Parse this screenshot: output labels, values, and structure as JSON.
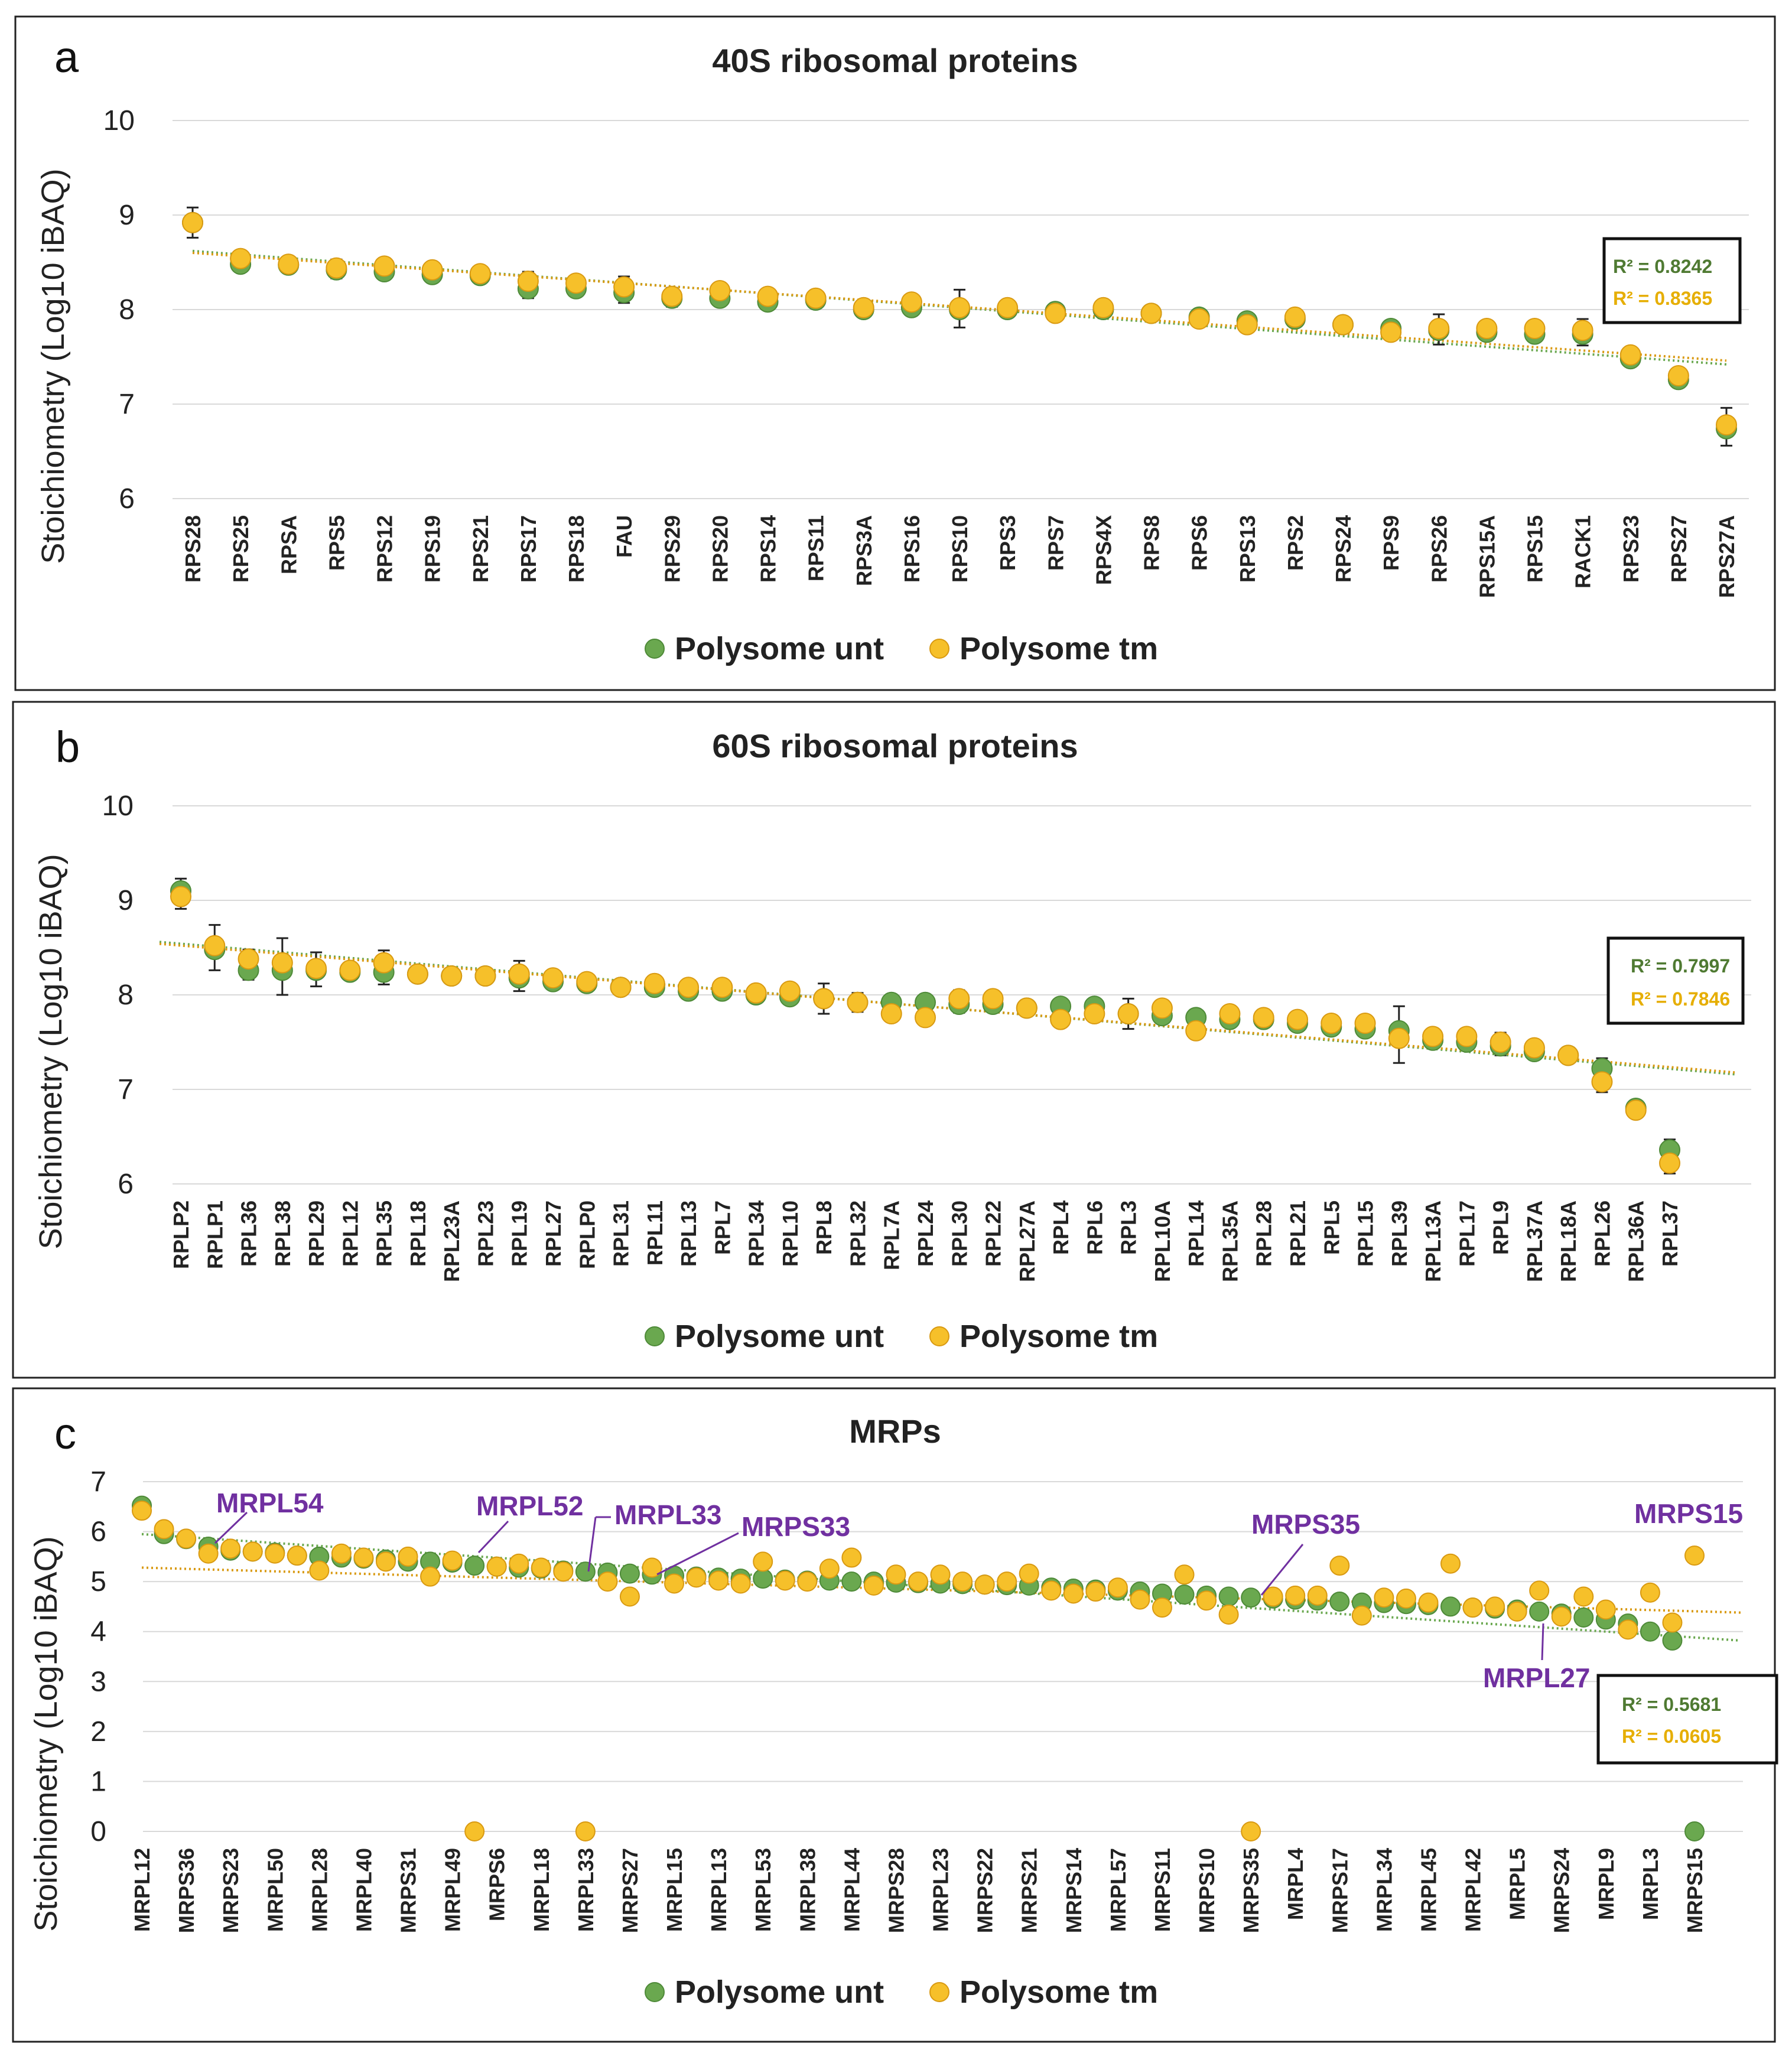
{
  "colors": {
    "unt": "#6aa84f",
    "unt_stroke": "#4e8a38",
    "tm": "#f6c02a",
    "tm_stroke": "#d99a12",
    "r2_unt": "#4f7a32",
    "r2_tm": "#e6ae00",
    "callout": "#7030a0"
  },
  "legend": {
    "unt": "Polysome unt",
    "tm": "Polysome tm"
  },
  "chart_data": [
    {
      "type": "scatter",
      "panel": "a",
      "title": "40S ribosomal proteins",
      "ylabel": "Stoichiometry (Log10 iBAQ)",
      "ylim": [
        6,
        10
      ],
      "yticks": [
        "6",
        "7",
        "8",
        "9",
        "10"
      ],
      "categories": [
        "RPS28",
        "RPS25",
        "RPSA",
        "RPS5",
        "RPS12",
        "RPS19",
        "RPS21",
        "RPS17",
        "RPS18",
        "FAU",
        "RPS29",
        "RPS20",
        "RPS14",
        "RPS11",
        "RPS3A",
        "RPS16",
        "RPS10",
        "RPS3",
        "RPS7",
        "RPS4X",
        "RPS8",
        "RPS6",
        "RPS13",
        "RPS2",
        "RPS24",
        "RPS9",
        "RPS26",
        "RPS15A",
        "RPS15",
        "RACK1",
        "RPS23",
        "RPS27",
        "RPS27A"
      ],
      "series": [
        {
          "name": "Polysome unt",
          "values": [
            8.92,
            8.48,
            8.47,
            8.42,
            8.4,
            8.37,
            8.36,
            8.22,
            8.22,
            8.18,
            8.12,
            8.12,
            8.08,
            8.1,
            8.0,
            8.02,
            8.0,
            8.0,
            7.98,
            8.0,
            7.96,
            7.92,
            7.88,
            7.9,
            7.84,
            7.8,
            7.78,
            7.76,
            7.74,
            7.74,
            7.48,
            7.26,
            6.74
          ]
        },
        {
          "name": "Polysome tm",
          "values": [
            8.92,
            8.54,
            8.48,
            8.44,
            8.46,
            8.42,
            8.38,
            8.3,
            8.28,
            8.24,
            8.14,
            8.2,
            8.14,
            8.12,
            8.02,
            8.08,
            8.02,
            8.02,
            7.96,
            8.02,
            7.96,
            7.9,
            7.84,
            7.92,
            7.84,
            7.76,
            7.8,
            7.8,
            7.8,
            7.78,
            7.52,
            7.3,
            6.78
          ]
        }
      ],
      "errors": [
        0.16,
        0.1,
        0.04,
        0.1,
        0.05,
        0.1,
        0.06,
        0.14,
        0.06,
        0.14,
        0.1,
        0.06,
        0.04,
        0.06,
        0.06,
        0.06,
        0.2,
        0.06,
        0.04,
        0.06,
        0.04,
        0.06,
        0.06,
        0.06,
        0.06,
        0.06,
        0.16,
        0.06,
        0.06,
        0.14,
        0.08,
        0.1,
        0.2
      ],
      "trendlines": {
        "unt": [
          8.62,
          7.42
        ],
        "tm": [
          8.6,
          7.46
        ]
      },
      "r_squared": {
        "unt": "R² = 0.8242",
        "tm": "R² = 0.8365"
      }
    },
    {
      "type": "scatter",
      "panel": "b",
      "title": "60S ribosomal proteins",
      "ylabel": "Stoichiometry (Log10 iBAQ)",
      "ylim": [
        6,
        10
      ],
      "yticks": [
        "6",
        "7",
        "8",
        "9",
        "10"
      ],
      "categories": [
        "RPLP2",
        "RPLP1",
        "RPL36",
        "RPL38",
        "RPL29",
        "RPL12",
        "RPL35",
        "RPL18",
        "RPL23A",
        "RPL23",
        "RPL19",
        "RPL27",
        "RPLP0",
        "RPL31",
        "RPL11",
        "RPL13",
        "RPL7",
        "RPL34",
        "RPL10",
        "RPL8",
        "RPL32",
        "RPL7A",
        "RPL24",
        "RPL30",
        "RPL22",
        "RPL27A",
        "RPL4",
        "RPL6",
        "RPL3",
        "RPL10A",
        "RPL14",
        "RPL35A",
        "RPL28",
        "RPL21",
        "RPL5",
        "RPL15",
        "RPL39",
        "RPL13A",
        "RPL17",
        "RPL9",
        "RPL37A",
        "RPL18A",
        "RPL26",
        "RPL36A",
        "RPL37"
      ],
      "series": [
        {
          "name": "Polysome unt",
          "values": [
            9.1,
            8.48,
            8.26,
            8.26,
            8.26,
            8.24,
            8.24,
            8.22,
            8.2,
            8.2,
            8.18,
            8.14,
            8.12,
            8.08,
            8.08,
            8.04,
            8.04,
            8.0,
            7.98,
            7.96,
            7.92,
            7.92,
            7.92,
            7.9,
            7.9,
            7.86,
            7.88,
            7.88,
            7.8,
            7.78,
            7.76,
            7.74,
            7.74,
            7.7,
            7.66,
            7.64,
            7.62,
            7.52,
            7.5,
            7.46,
            7.4,
            7.36,
            7.22,
            6.8,
            6.36
          ]
        },
        {
          "name": "Polysome tm",
          "values": [
            9.04,
            8.52,
            8.38,
            8.34,
            8.28,
            8.26,
            8.34,
            8.22,
            8.2,
            8.2,
            8.22,
            8.18,
            8.14,
            8.08,
            8.12,
            8.08,
            8.08,
            8.02,
            8.04,
            7.96,
            7.92,
            7.8,
            7.76,
            7.96,
            7.96,
            7.86,
            7.74,
            7.8,
            7.8,
            7.86,
            7.62,
            7.8,
            7.76,
            7.74,
            7.7,
            7.7,
            7.54,
            7.56,
            7.56,
            7.5,
            7.44,
            7.36,
            7.08,
            6.78,
            6.22
          ]
        }
      ],
      "errors": [
        0.16,
        0.24,
        0.16,
        0.3,
        0.18,
        0.06,
        0.18,
        0.06,
        0.08,
        0.06,
        0.16,
        0.06,
        0.06,
        0.04,
        0.06,
        0.06,
        0.06,
        0.06,
        0.06,
        0.16,
        0.1,
        0.1,
        0.06,
        0.12,
        0.06,
        0.06,
        0.04,
        0.06,
        0.16,
        0.06,
        0.06,
        0.06,
        0.06,
        0.08,
        0.1,
        0.06,
        0.3,
        0.06,
        0.1,
        0.12,
        0.08,
        0.06,
        0.18,
        0.06,
        0.18
      ],
      "trendlines": {
        "unt": [
          8.56,
          7.16
        ],
        "tm": [
          8.54,
          7.18
        ]
      },
      "r_squared": {
        "unt": "R² = 0.7997",
        "tm": "R² = 0.7846"
      }
    },
    {
      "type": "scatter",
      "panel": "c",
      "title": "MRPs",
      "ylabel": "Stoichiometry (Log10 iBAQ)",
      "ylim": [
        0,
        7
      ],
      "yticks": [
        "0",
        "1",
        "2",
        "3",
        "4",
        "5",
        "6",
        "7"
      ],
      "categories": [
        "MRPL12",
        "",
        "MRPS36",
        "",
        "MRPS23",
        "",
        "MRPL50",
        "",
        "MRPL28",
        "",
        "MRPL40",
        "",
        "MRPS31",
        "",
        "MRPL49",
        "",
        "MRPS6",
        "",
        "MRPL18",
        "",
        "MRPL33",
        "",
        "MRPS27",
        "",
        "MRPL15",
        "",
        "MRPL13",
        "",
        "MRPL53",
        "",
        "MRPL38",
        "",
        "MRPL44",
        "",
        "MRPS28",
        "",
        "MRPL23",
        "",
        "MRPS22",
        "",
        "MRPS21",
        "",
        "MRPS14",
        "",
        "MRPL57",
        "",
        "MRPS11",
        "",
        "MRPS10",
        "",
        "MRPS35",
        "",
        "MRPL4",
        "",
        "MRPS17",
        "",
        "MRPL34",
        "",
        "MRPL45",
        "",
        "MRPL42",
        "",
        "MRPL5",
        "",
        "MRPS24",
        "",
        "MRPL9",
        "",
        "MRPL3",
        "",
        "MRPS15"
      ],
      "series": [
        {
          "name": "Polysome unt",
          "values": [
            6.52,
            5.95,
            5.85,
            5.7,
            5.62,
            5.6,
            5.58,
            5.52,
            5.5,
            5.48,
            5.46,
            5.44,
            5.4,
            5.4,
            5.38,
            5.32,
            5.3,
            5.28,
            5.26,
            5.22,
            5.2,
            5.18,
            5.16,
            5.14,
            5.12,
            5.1,
            5.08,
            5.06,
            5.06,
            5.04,
            5.02,
            5.02,
            5.0,
            5.0,
            4.98,
            4.97,
            4.96,
            4.95,
            4.94,
            4.93,
            4.92,
            4.88,
            4.86,
            4.84,
            4.82,
            4.8,
            4.76,
            4.74,
            4.72,
            4.7,
            4.68,
            4.66,
            4.64,
            4.62,
            4.6,
            4.58,
            4.57,
            4.55,
            4.53,
            4.5,
            4.48,
            4.46,
            4.44,
            4.4,
            4.36,
            4.28,
            4.24,
            4.16,
            4.0,
            3.82,
            0.0
          ]
        },
        {
          "name": "Polysome tm",
          "values": [
            6.42,
            6.05,
            5.86,
            5.56,
            5.66,
            5.6,
            5.56,
            5.52,
            5.22,
            5.56,
            5.48,
            5.4,
            5.5,
            5.1,
            5.42,
            0.0,
            5.3,
            5.36,
            5.28,
            5.2,
            0.0,
            5.0,
            4.7,
            5.28,
            4.96,
            5.08,
            5.02,
            4.96,
            5.4,
            5.02,
            5.0,
            5.26,
            5.48,
            4.92,
            5.14,
            5.0,
            5.14,
            5.0,
            4.94,
            5.0,
            5.16,
            4.82,
            4.76,
            4.8,
            4.88,
            4.64,
            4.48,
            5.14,
            4.62,
            4.34,
            0.0,
            4.7,
            4.72,
            4.72,
            5.32,
            4.32,
            4.68,
            4.66,
            4.58,
            5.36,
            4.48,
            4.5,
            4.4,
            4.82,
            4.3,
            4.7,
            4.44,
            4.04,
            4.78,
            4.18,
            5.52
          ]
        }
      ],
      "trendlines": {
        "unt": [
          5.95,
          3.82
        ],
        "tm": [
          5.28,
          4.38
        ]
      },
      "r_squared": {
        "unt": "R² = 0.5681",
        "tm": "R² = 0.0605"
      },
      "callouts": [
        "MRPL54",
        "MRPL52",
        "MRPL33",
        "MRPS33",
        "MRPS35",
        "MRPS15",
        "MRPL27"
      ]
    }
  ]
}
